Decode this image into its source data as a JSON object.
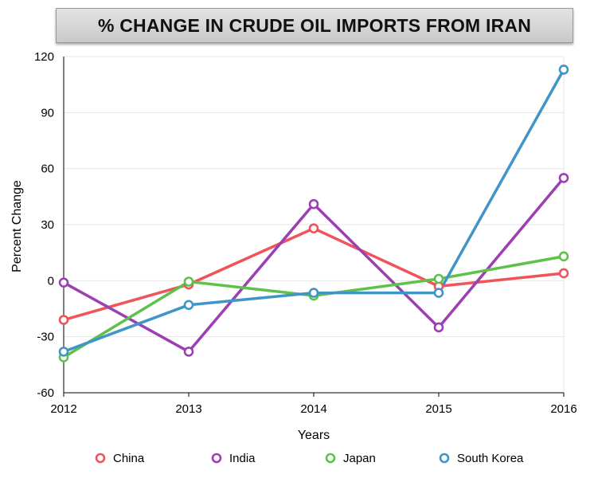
{
  "chart_data": {
    "type": "line",
    "title": "% CHANGE IN CRUDE OIL IMPORTS FROM IRAN",
    "xlabel": "Years",
    "ylabel": "Percent Change",
    "categories": [
      "2012",
      "2013",
      "2014",
      "2015",
      "2016"
    ],
    "ylim": [
      -60,
      120
    ],
    "yticks": [
      -60,
      -30,
      0,
      30,
      60,
      90,
      120
    ],
    "yticks_labels": [
      "-60",
      "-30",
      "0",
      "30",
      "60",
      "90",
      "120"
    ],
    "grid": "horizontal",
    "legend_position": "bottom",
    "series": [
      {
        "name": "China",
        "color": "#f0545a",
        "values": [
          -21,
          -2,
          28,
          -3,
          4
        ]
      },
      {
        "name": "India",
        "color": "#9b3fb3",
        "values": [
          -1,
          -38,
          41,
          -25,
          55
        ]
      },
      {
        "name": "Japan",
        "color": "#5ec24a",
        "values": [
          -41,
          -0.5,
          -8,
          1,
          13
        ]
      },
      {
        "name": "South Korea",
        "color": "#3f95c7",
        "values": [
          -38,
          -13,
          -6.5,
          -6.5,
          113
        ]
      }
    ]
  }
}
